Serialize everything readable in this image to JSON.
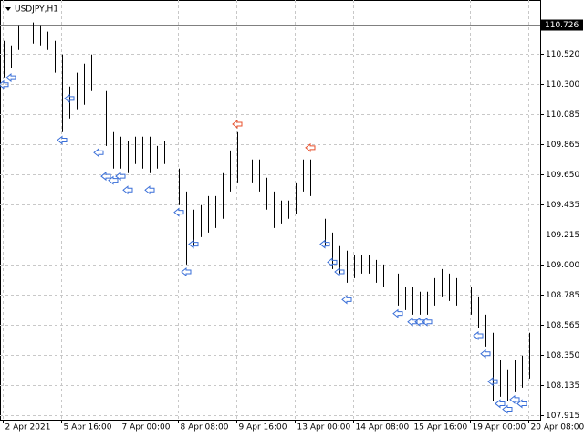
{
  "chart_data": {
    "type": "ohlc",
    "title": "USDJPY,H1",
    "categories": [
      "2 Apr 2021",
      null,
      null,
      null,
      null,
      null,
      null,
      null,
      "5 Apr 16:00",
      null,
      null,
      null,
      null,
      null,
      null,
      null,
      "7 Apr 00:00",
      null,
      null,
      null,
      null,
      null,
      null,
      null,
      "8 Apr 08:00",
      null,
      null,
      null,
      null,
      null,
      null,
      null,
      "9 Apr 16:00",
      null,
      null,
      null,
      null,
      null,
      null,
      null,
      "13 Apr 00:00",
      null,
      null,
      null,
      null,
      null,
      null,
      null,
      "14 Apr 08:00",
      null,
      null,
      null,
      null,
      null,
      null,
      null,
      "15 Apr 16:00",
      null,
      null,
      null,
      null,
      null,
      null,
      null,
      "19 Apr 00:00",
      null,
      null,
      null,
      null,
      null,
      null,
      null,
      "20 Apr 08:00",
      null
    ],
    "high": [
      110.613,
      110.58,
      110.725,
      110.712,
      110.745,
      110.725,
      110.679,
      110.613,
      110.514,
      110.284,
      110.383,
      110.448,
      110.514,
      110.547,
      110.251,
      109.955,
      109.922,
      109.889,
      109.922,
      109.922,
      109.922,
      109.856,
      109.889,
      109.823,
      109.692,
      109.527,
      109.396,
      109.429,
      109.494,
      109.494,
      109.659,
      109.823,
      109.955,
      109.758,
      109.758,
      109.758,
      109.626,
      109.527,
      109.462,
      109.462,
      109.593,
      109.758,
      109.758,
      109.626,
      109.33,
      109.231,
      109.133,
      109.1,
      109.067,
      109.067,
      109.067,
      109.034,
      109.001,
      109.001,
      108.935,
      108.838,
      108.838,
      108.804,
      108.804,
      108.902,
      108.968,
      108.935,
      108.902,
      108.902,
      108.838,
      108.771,
      108.639,
      108.508,
      108.31,
      108.245,
      108.31,
      108.343,
      108.508,
      108.541
    ],
    "low": [
      110.35,
      110.416,
      110.547,
      110.58,
      110.593,
      110.58,
      110.547,
      110.383,
      109.955,
      110.054,
      110.12,
      110.152,
      110.251,
      110.284,
      109.856,
      109.692,
      109.692,
      109.659,
      109.725,
      109.692,
      109.659,
      109.692,
      109.725,
      109.56,
      109.429,
      109.001,
      109.133,
      109.198,
      109.231,
      109.264,
      109.33,
      109.527,
      109.593,
      109.593,
      109.593,
      109.527,
      109.396,
      109.264,
      109.297,
      109.33,
      109.363,
      109.527,
      109.494,
      109.198,
      109.133,
      108.968,
      108.935,
      108.869,
      108.902,
      108.935,
      108.935,
      108.869,
      108.838,
      108.804,
      108.705,
      108.672,
      108.639,
      108.639,
      108.639,
      108.705,
      108.771,
      108.738,
      108.705,
      108.705,
      108.639,
      108.541,
      108.409,
      108.014,
      108.047,
      108.014,
      108.08,
      108.113,
      108.179,
      108.31
    ],
    "buy_arrows": [
      110.35,
      110.4,
      null,
      null,
      null,
      null,
      null,
      null,
      109.95,
      110.25,
      null,
      null,
      null,
      109.86,
      109.69,
      109.66,
      109.69,
      109.59,
      null,
      null,
      109.59,
      null,
      null,
      null,
      109.43,
      109.0,
      109.2,
      null,
      null,
      null,
      null,
      null,
      null,
      null,
      null,
      null,
      null,
      null,
      null,
      null,
      null,
      null,
      null,
      null,
      109.2,
      109.07,
      109.0,
      108.8,
      null,
      null,
      null,
      null,
      null,
      null,
      108.7,
      null,
      108.64,
      108.64,
      108.64,
      null,
      null,
      null,
      null,
      null,
      null,
      108.54,
      108.41,
      108.21,
      108.05,
      108.01,
      108.08,
      108.05,
      null,
      null
    ],
    "sell_arrows": [
      null,
      null,
      null,
      null,
      null,
      null,
      null,
      null,
      null,
      null,
      null,
      null,
      null,
      null,
      null,
      null,
      null,
      null,
      null,
      null,
      null,
      null,
      null,
      null,
      null,
      null,
      null,
      null,
      null,
      null,
      null,
      null,
      109.96,
      null,
      null,
      null,
      null,
      null,
      null,
      null,
      null,
      null,
      109.79,
      null,
      null,
      null,
      null,
      null,
      null,
      null,
      null,
      null,
      null,
      null,
      null,
      null,
      null,
      null,
      null,
      null,
      null,
      null,
      null,
      null,
      null,
      null,
      null,
      null,
      null,
      null,
      null,
      null,
      null,
      null
    ],
    "bar_color": "#000000",
    "buy_color": "#3a6fd8",
    "sell_color": "#e8502c",
    "ylim": [
      107.882,
      110.907
    ],
    "yticks": [
      {
        "value": 110.52,
        "label": "110.520"
      },
      {
        "value": 110.3,
        "label": "110.300"
      },
      {
        "value": 110.085,
        "label": "110.085"
      },
      {
        "value": 109.865,
        "label": "109.865"
      },
      {
        "value": 109.65,
        "label": "109.650"
      },
      {
        "value": 109.435,
        "label": "109.435"
      },
      {
        "value": 109.215,
        "label": "109.215"
      },
      {
        "value": 109.0,
        "label": "109.000"
      },
      {
        "value": 108.785,
        "label": "108.785"
      },
      {
        "value": 108.565,
        "label": "108.565"
      },
      {
        "value": 108.35,
        "label": "108.350"
      },
      {
        "value": 108.135,
        "label": "108.135"
      },
      {
        "value": 107.915,
        "label": "107.915"
      }
    ],
    "last_price": {
      "value": 110.726,
      "label": "110.726"
    },
    "grid": true
  }
}
